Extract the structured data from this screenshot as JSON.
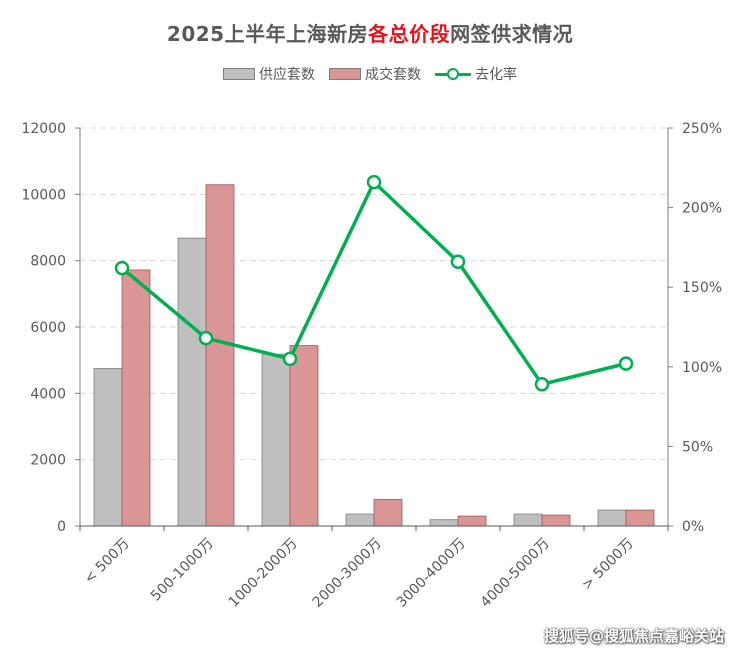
{
  "title": {
    "part1": "2025上半年上海新房",
    "highlight": "各总价段",
    "part2": "网签供求情况"
  },
  "legend": {
    "supply": "供应套数",
    "deals": "成交套数",
    "rate": "去化率"
  },
  "watermark": "搜狐号@搜狐焦点嘉峪关站",
  "colors": {
    "supply": "#bfbfbf",
    "supply_border": "#7f7f7f",
    "deals": "#d99694",
    "deals_border": "#9a5b5a",
    "rate": "#00b050",
    "grid": "#d9d9d9",
    "axis_text": "#595959",
    "title_highlight": "#e8111a"
  },
  "chart_data": {
    "type": "bar+line",
    "categories": [
      "< 500万",
      "500-1000万",
      "1000-2000万",
      "2000-3000万",
      "3000-4000万",
      "4000-5000万",
      "> 5000万"
    ],
    "series": [
      {
        "name": "供应套数",
        "type": "bar",
        "axis": "left",
        "values": [
          4750,
          8680,
          5180,
          360,
          190,
          360,
          480
        ]
      },
      {
        "name": "成交套数",
        "type": "bar",
        "axis": "left",
        "values": [
          7720,
          10290,
          5440,
          800,
          300,
          330,
          480
        ]
      },
      {
        "name": "去化率",
        "type": "line",
        "axis": "right",
        "values": [
          1.62,
          1.18,
          1.05,
          2.16,
          1.66,
          0.89,
          1.02
        ]
      }
    ],
    "left_axis": {
      "min": 0,
      "max": 12000,
      "ticks": [
        0,
        2000,
        4000,
        6000,
        8000,
        10000,
        12000
      ],
      "tick_labels": [
        "0",
        "2000",
        "4000",
        "6000",
        "8000",
        "10000",
        "12000"
      ]
    },
    "right_axis": {
      "min": 0,
      "max": 2.5,
      "ticks": [
        0,
        0.5,
        1.0,
        1.5,
        2.0,
        2.5
      ],
      "tick_labels": [
        "0%",
        "50%",
        "100%",
        "150%",
        "200%",
        "250%"
      ]
    },
    "grid": true,
    "legend_position": "top"
  }
}
